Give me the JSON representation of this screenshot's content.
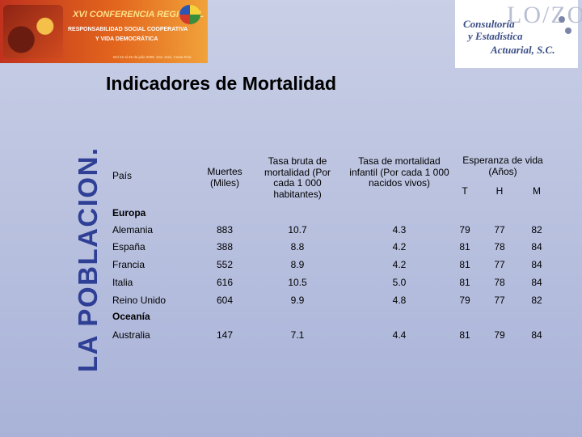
{
  "banner": {
    "line1": "XVI CONFERENCIA REGIONAL",
    "line2": "RESPONSABILIDAD SOCIAL COOPERATIVA",
    "line3": "Y VIDA DEMOCRÁTICA",
    "line4": "Del 22 al 25 de julio 2008. San José, Costa Rica"
  },
  "logo": {
    "line1": "Consultoría",
    "line2": "y Estadística",
    "line3": "Actuarial, S.C."
  },
  "vertical_title": "LA POBLACION.",
  "heading": "Indicadores de Mortalidad",
  "table": {
    "headers": {
      "pais": "País",
      "muertes": "Muertes (Miles)",
      "tasa_bruta": "Tasa bruta de mortalidad (Por cada 1 000 habitantes)",
      "tasa_infantil": "Tasa de mortalidad infantil (Por cada 1 000 nacidos vivos)",
      "esperanza": "Esperanza de vida (Años)",
      "t": "T",
      "h": "H",
      "m": "M"
    },
    "regions": [
      {
        "name": "Europa",
        "rows": [
          {
            "pais": "Alemania",
            "muertes": "883",
            "bruta": "10.7",
            "infantil": "4.3",
            "t": "79",
            "h": "77",
            "m": "82"
          },
          {
            "pais": "España",
            "muertes": "388",
            "bruta": "8.8",
            "infantil": "4.2",
            "t": "81",
            "h": "78",
            "m": "84"
          },
          {
            "pais": "Francia",
            "muertes": "552",
            "bruta": "8.9",
            "infantil": "4.2",
            "t": "81",
            "h": "77",
            "m": "84"
          },
          {
            "pais": "Italia",
            "muertes": "616",
            "bruta": "10.5",
            "infantil": "5.0",
            "t": "81",
            "h": "78",
            "m": "84"
          },
          {
            "pais": "Reino Unido",
            "muertes": "604",
            "bruta": "9.9",
            "infantil": "4.8",
            "t": "79",
            "h": "77",
            "m": "82"
          }
        ]
      },
      {
        "name": "Oceanía",
        "rows": [
          {
            "pais": "Australia",
            "muertes": "147",
            "bruta": "7.1",
            "infantil": "4.4",
            "t": "81",
            "h": "79",
            "m": "84"
          }
        ]
      }
    ]
  }
}
